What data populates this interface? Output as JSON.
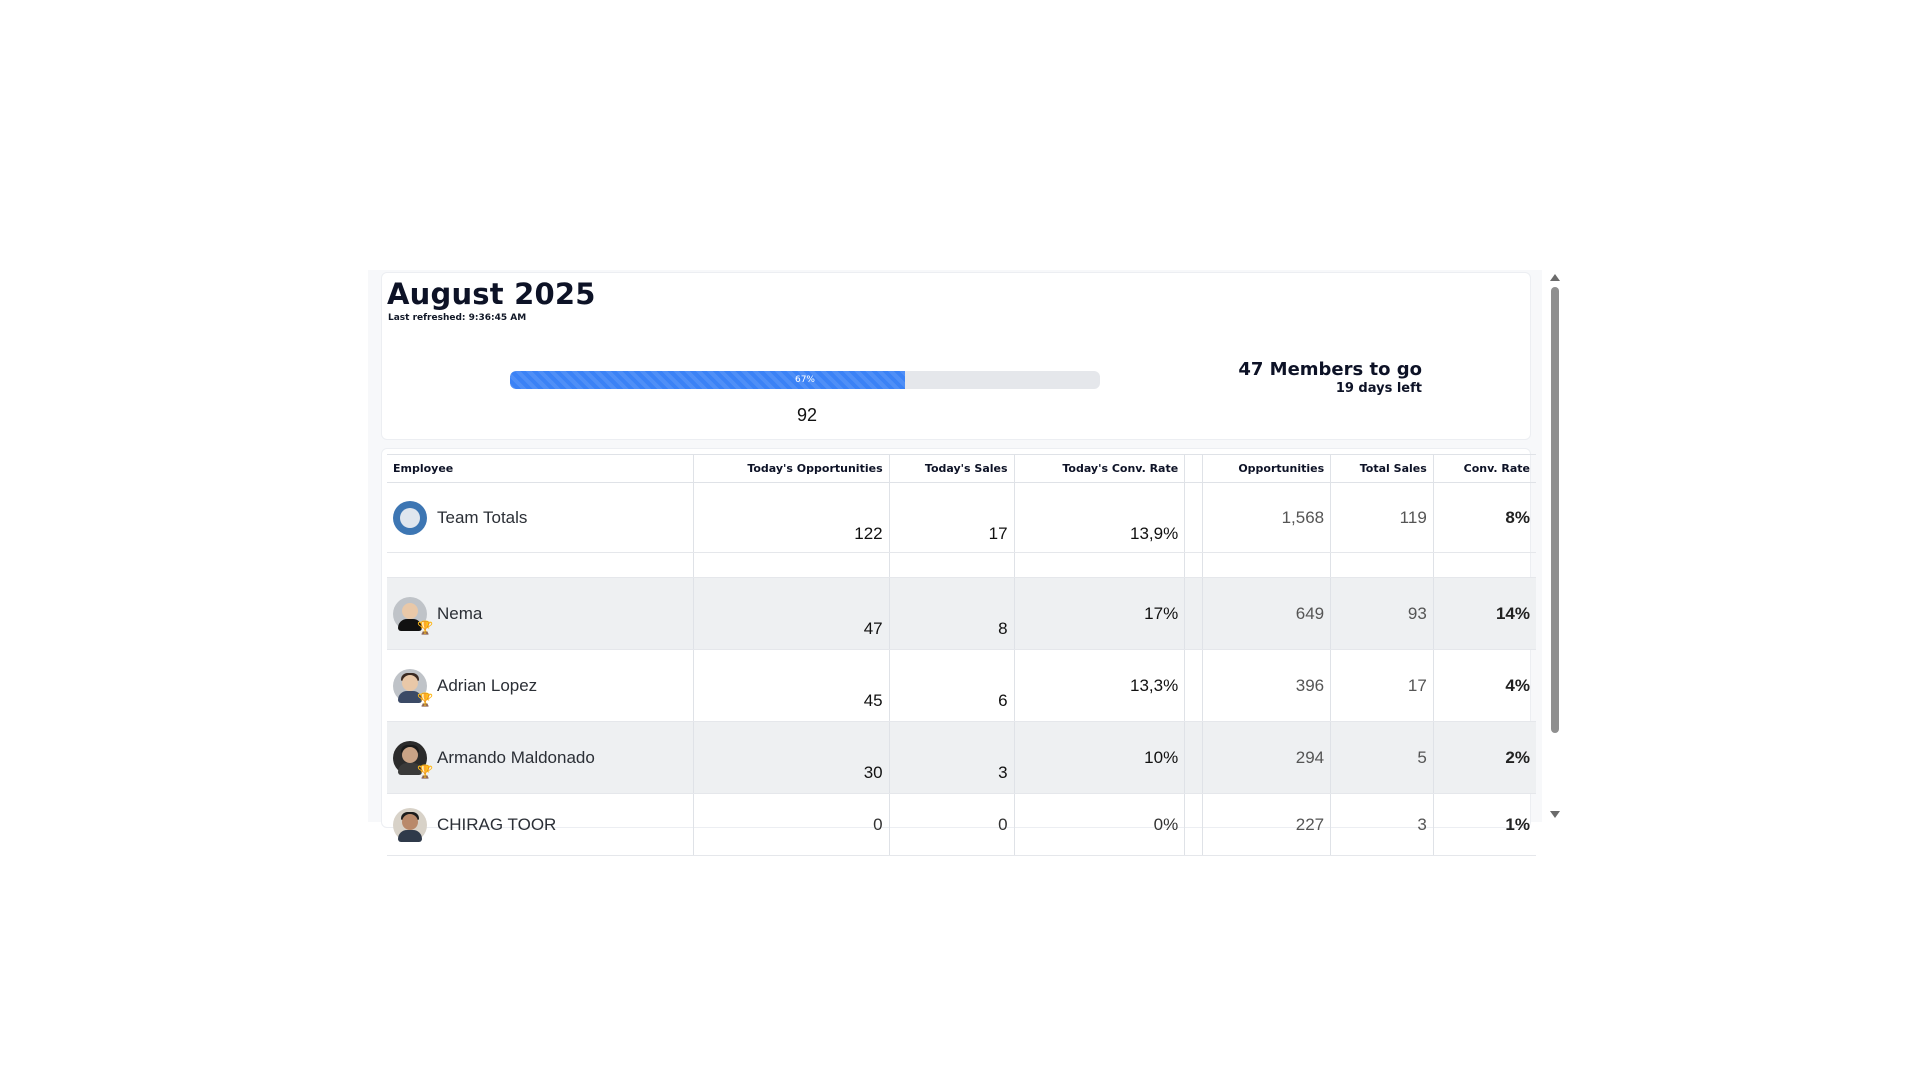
{
  "header": {
    "title": "August 2025",
    "refreshed_label": "Last refreshed:",
    "refreshed_time": "9:36:45 AM"
  },
  "goal": {
    "progress_percent": 67,
    "progress_label": "67%",
    "current_value": "92",
    "members_to_go": "47 Members to go",
    "days_left": "19 days left",
    "bar_color": "#3b82f6"
  },
  "table": {
    "columns": {
      "employee": "Employee",
      "today_opps": "Today's Opportunities",
      "today_sales": "Today's Sales",
      "today_rate": "Today's Conv. Rate",
      "blank": "",
      "opps": "Opportunities",
      "total_sales": "Total Sales",
      "conv_rate": "Conv. Rate"
    },
    "team": {
      "name": "Team Totals",
      "icon": "team-logo-icon",
      "today_opps": "122",
      "today_sales": "17",
      "today_rate": "13,9%",
      "opps": "1,568",
      "total_sales": "119",
      "conv_rate": "8%"
    },
    "rows": [
      {
        "name": "Nema",
        "trophy": "gold-trophy-icon",
        "today_opps": "47",
        "today_sales": "8",
        "today_rate": "17%",
        "opps": "649",
        "total_sales": "93",
        "conv_rate": "14%"
      },
      {
        "name": "Adrian Lopez",
        "trophy": "silver-trophy-icon",
        "today_opps": "45",
        "today_sales": "6",
        "today_rate": "13,3%",
        "opps": "396",
        "total_sales": "17",
        "conv_rate": "4%"
      },
      {
        "name": "Armando Maldonado",
        "trophy": "bronze-trophy-icon",
        "today_opps": "30",
        "today_sales": "3",
        "today_rate": "10%",
        "opps": "294",
        "total_sales": "5",
        "conv_rate": "2%"
      },
      {
        "name": "CHIRAG TOOR",
        "trophy": "",
        "today_opps": "0",
        "today_sales": "0",
        "today_rate": "0%",
        "opps": "227",
        "total_sales": "3",
        "conv_rate": "1%"
      }
    ]
  }
}
